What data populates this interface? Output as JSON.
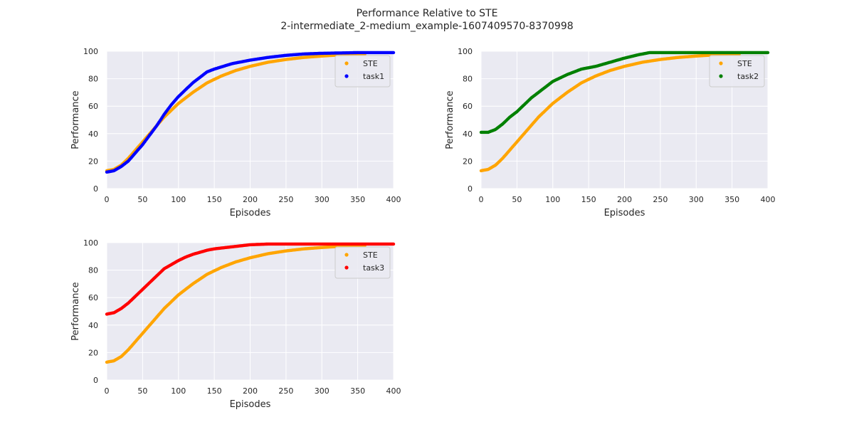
{
  "figure": {
    "title": "Performance Relative to STE",
    "subtitle": "2-intermediate_2-medium_example-1607409570-8370998"
  },
  "style": {
    "background": "#eaeaf2",
    "grid": "#ffffff",
    "ste_color": "#ffa500"
  },
  "chart_data": [
    {
      "type": "scatter",
      "xlabel": "Episodes",
      "ylabel": "Performance",
      "xlim": [
        0,
        400
      ],
      "ylim": [
        0,
        100
      ],
      "xticks": [
        "0",
        "50",
        "100",
        "150",
        "200",
        "250",
        "300",
        "350",
        "400"
      ],
      "yticks": [
        "0",
        "20",
        "40",
        "60",
        "80",
        "100"
      ],
      "grid": true,
      "legend": "top-right",
      "series": [
        {
          "name": "STE",
          "color": "#ffa500",
          "end": 360,
          "x": [
            0,
            10,
            20,
            30,
            40,
            50,
            60,
            70,
            80,
            90,
            100,
            120,
            140,
            160,
            180,
            200,
            225,
            250,
            275,
            300,
            330,
            360
          ],
          "y": [
            13,
            14,
            17,
            22,
            28,
            34,
            40,
            46,
            52,
            57,
            62,
            70,
            77,
            82,
            86,
            89,
            92,
            94,
            95.5,
            96.5,
            97.5,
            98
          ]
        },
        {
          "name": "task1",
          "color": "#0000ff",
          "end": 400,
          "x": [
            0,
            10,
            20,
            30,
            40,
            50,
            60,
            70,
            80,
            90,
            100,
            110,
            120,
            130,
            140,
            150,
            175,
            200,
            225,
            250,
            275,
            300,
            350,
            400
          ],
          "y": [
            12,
            13,
            16,
            20,
            26,
            32,
            39,
            46,
            54,
            61,
            67,
            72,
            77,
            81,
            85,
            87,
            91,
            93.5,
            95.5,
            97,
            98,
            98.5,
            99,
            99
          ]
        }
      ]
    },
    {
      "type": "scatter",
      "xlabel": "Episodes",
      "ylabel": "Performance",
      "xlim": [
        0,
        400
      ],
      "ylim": [
        0,
        100
      ],
      "xticks": [
        "0",
        "50",
        "100",
        "150",
        "200",
        "250",
        "300",
        "350",
        "400"
      ],
      "yticks": [
        "0",
        "20",
        "40",
        "60",
        "80",
        "100"
      ],
      "grid": true,
      "legend": "top-right",
      "series": [
        {
          "name": "STE",
          "color": "#ffa500",
          "end": 360,
          "x": [
            0,
            10,
            20,
            30,
            40,
            50,
            60,
            70,
            80,
            90,
            100,
            120,
            140,
            160,
            180,
            200,
            225,
            250,
            275,
            300,
            330,
            360
          ],
          "y": [
            13,
            14,
            17,
            22,
            28,
            34,
            40,
            46,
            52,
            57,
            62,
            70,
            77,
            82,
            86,
            89,
            92,
            94,
            95.5,
            96.5,
            97.5,
            98
          ]
        },
        {
          "name": "task2",
          "color": "#008000",
          "end": 400,
          "x": [
            0,
            10,
            20,
            30,
            40,
            50,
            60,
            70,
            80,
            90,
            100,
            120,
            140,
            160,
            180,
            200,
            220,
            235,
            260,
            300,
            350,
            400
          ],
          "y": [
            41,
            41,
            43,
            47,
            52,
            56,
            61,
            66,
            70,
            74,
            78,
            83,
            87,
            89,
            92,
            95,
            97.5,
            99,
            99,
            99,
            99,
            99
          ]
        }
      ]
    },
    {
      "type": "scatter",
      "xlabel": "Episodes",
      "ylabel": "Performance",
      "xlim": [
        0,
        400
      ],
      "ylim": [
        0,
        100
      ],
      "xticks": [
        "0",
        "50",
        "100",
        "150",
        "200",
        "250",
        "300",
        "350",
        "400"
      ],
      "yticks": [
        "0",
        "20",
        "40",
        "60",
        "80",
        "100"
      ],
      "grid": true,
      "legend": "top-right",
      "series": [
        {
          "name": "STE",
          "color": "#ffa500",
          "end": 360,
          "x": [
            0,
            10,
            20,
            30,
            40,
            50,
            60,
            70,
            80,
            90,
            100,
            120,
            140,
            160,
            180,
            200,
            225,
            250,
            275,
            300,
            330,
            360
          ],
          "y": [
            13,
            14,
            17,
            22,
            28,
            34,
            40,
            46,
            52,
            57,
            62,
            70,
            77,
            82,
            86,
            89,
            92,
            94,
            95.5,
            96.5,
            97.5,
            98
          ]
        },
        {
          "name": "task3",
          "color": "#ff0000",
          "end": 400,
          "x": [
            0,
            10,
            20,
            30,
            40,
            50,
            60,
            70,
            80,
            90,
            100,
            110,
            120,
            130,
            140,
            150,
            175,
            200,
            225,
            250,
            300,
            400
          ],
          "y": [
            48,
            49,
            52,
            56,
            61,
            66,
            71,
            76,
            81,
            84,
            87,
            89.5,
            91.5,
            93,
            94.5,
            95.5,
            97,
            98.5,
            99,
            99,
            99,
            99
          ]
        }
      ]
    }
  ]
}
